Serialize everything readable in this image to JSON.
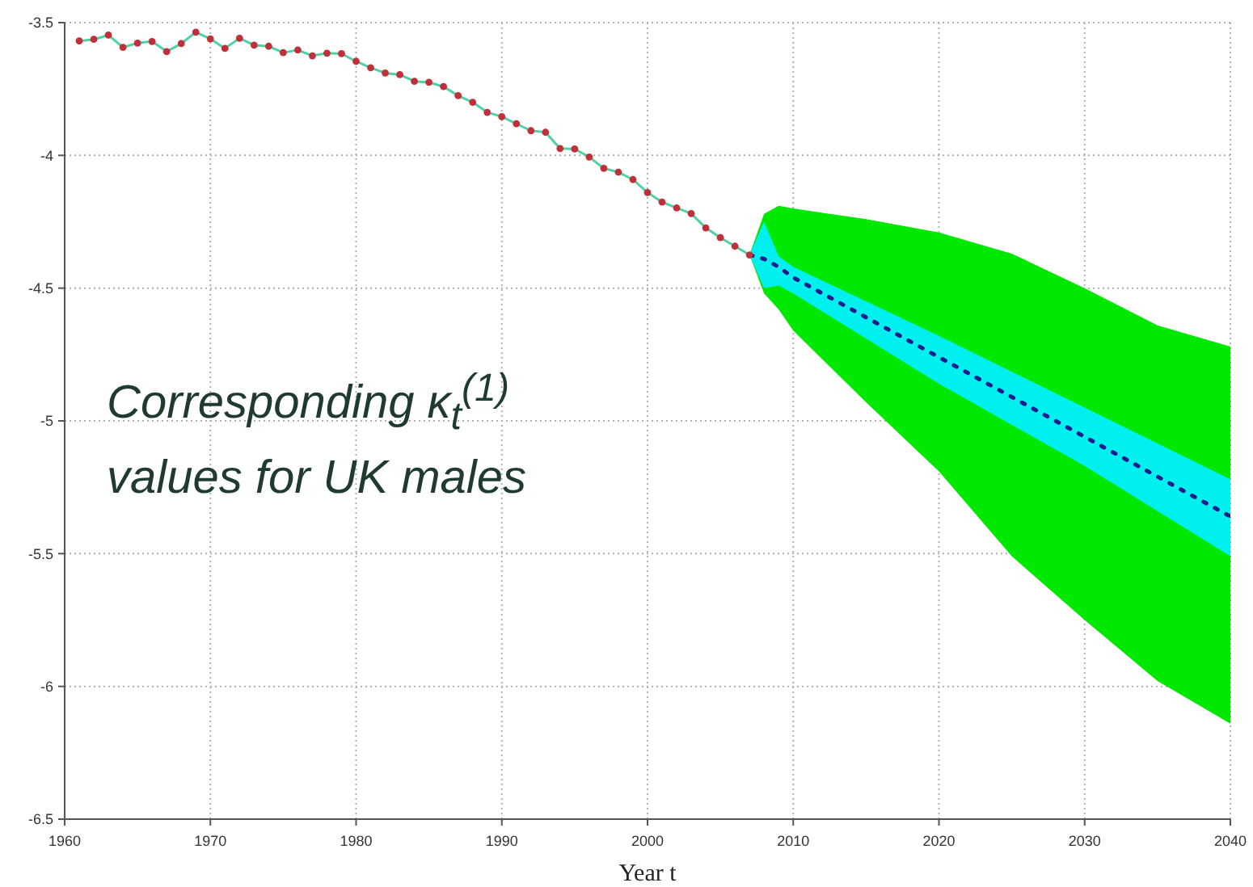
{
  "chart_data": {
    "type": "line",
    "xlabel": "Year t",
    "annotations": [
      "Corresponding κ$_{t}$$^{(1)}$ values for UK males"
    ],
    "xlim": [
      1960,
      2040
    ],
    "xticks": [
      1960,
      1970,
      1980,
      1990,
      2000,
      2010,
      2020,
      2030,
      2040
    ],
    "ylim": [
      -6.5,
      -3.5
    ],
    "yticks": [
      -6.5,
      -6,
      -5.5,
      -5,
      -4.5,
      -4,
      -3.5
    ],
    "grid": true,
    "series": [
      {
        "type": "area",
        "color": "#00e800",
        "x": [
          2007,
          2008,
          2009,
          2010,
          2015,
          2020,
          2025,
          2030,
          2035,
          2040
        ],
        "values": [
          null,
          null,
          null,
          null,
          null,
          null,
          null,
          null,
          null,
          null
        ],
        "upper": [
          -4.375,
          -4.22,
          -4.19,
          -4.2,
          -4.24,
          -4.29,
          -4.37,
          -4.5,
          -4.64,
          -4.72
        ],
        "lower": [
          -4.375,
          -4.52,
          -4.58,
          -4.66,
          -4.93,
          -5.19,
          -5.51,
          -5.75,
          -5.98,
          -6.14
        ]
      },
      {
        "type": "area",
        "color": "#00f0f0",
        "x": [
          2007,
          2008,
          2009,
          2010,
          2020,
          2030,
          2040
        ],
        "values": [
          null,
          null,
          null,
          null,
          null,
          null,
          null
        ],
        "upper": [
          -4.375,
          -4.25,
          -4.38,
          -4.42,
          -4.68,
          -4.95,
          -5.22
        ],
        "lower": [
          -4.375,
          -4.5,
          -4.49,
          -4.52,
          -4.86,
          -5.17,
          -5.51
        ]
      },
      {
        "color": "#4fd1a5",
        "marker": "none",
        "x": [
          1961,
          1962,
          1963,
          1964,
          1965,
          1966,
          1967,
          1968,
          1969,
          1970,
          1971,
          1972,
          1973,
          1974,
          1975,
          1976,
          1977,
          1978,
          1979,
          1980,
          1981,
          1982,
          1983,
          1984,
          1985,
          1986,
          1987,
          1988,
          1989,
          1990,
          1991,
          1992,
          1993,
          1994,
          1995,
          1996,
          1997,
          1998,
          1999,
          2000,
          2001,
          2002,
          2003,
          2004,
          2005,
          2006,
          2007
        ],
        "values": [
          -3.569,
          -3.563,
          -3.547,
          -3.593,
          -3.577,
          -3.571,
          -3.609,
          -3.579,
          -3.536,
          -3.561,
          -3.597,
          -3.559,
          -3.585,
          -3.589,
          -3.613,
          -3.603,
          -3.625,
          -3.615,
          -3.617,
          -3.646,
          -3.67,
          -3.69,
          -3.696,
          -3.721,
          -3.725,
          -3.741,
          -3.775,
          -3.8,
          -3.838,
          -3.854,
          -3.881,
          -3.907,
          -3.913,
          -3.974,
          -3.976,
          -4.006,
          -4.049,
          -4.063,
          -4.091,
          -4.14,
          -4.176,
          -4.198,
          -4.219,
          -4.273,
          -4.31,
          -4.342,
          -4.375
        ]
      },
      {
        "type": "scatter",
        "color": "#c0303a",
        "marker": "circle",
        "x": [
          1961,
          1962,
          1963,
          1964,
          1965,
          1966,
          1967,
          1968,
          1969,
          1970,
          1971,
          1972,
          1973,
          1974,
          1975,
          1976,
          1977,
          1978,
          1979,
          1980,
          1981,
          1982,
          1983,
          1984,
          1985,
          1986,
          1987,
          1988,
          1989,
          1990,
          1991,
          1992,
          1993,
          1994,
          1995,
          1996,
          1997,
          1998,
          1999,
          2000,
          2001,
          2002,
          2003,
          2004,
          2005,
          2006,
          2007
        ],
        "values": [
          -3.569,
          -3.563,
          -3.547,
          -3.593,
          -3.577,
          -3.571,
          -3.609,
          -3.579,
          -3.536,
          -3.561,
          -3.597,
          -3.559,
          -3.585,
          -3.589,
          -3.613,
          -3.603,
          -3.625,
          -3.615,
          -3.617,
          -3.646,
          -3.67,
          -3.69,
          -3.696,
          -3.721,
          -3.725,
          -3.741,
          -3.775,
          -3.8,
          -3.838,
          -3.854,
          -3.881,
          -3.907,
          -3.913,
          -3.974,
          -3.976,
          -4.006,
          -4.049,
          -4.063,
          -4.091,
          -4.14,
          -4.176,
          -4.198,
          -4.219,
          -4.273,
          -4.31,
          -4.342,
          -4.375
        ]
      },
      {
        "color": "#1c1c8c",
        "marker": "none",
        "line_style": "dotted",
        "x": [
          2007,
          2008,
          2009,
          2010,
          2020,
          2030,
          2040
        ],
        "values": [
          -4.375,
          -4.39,
          -4.42,
          -4.46,
          -4.76,
          -5.06,
          -5.36
        ]
      }
    ]
  }
}
